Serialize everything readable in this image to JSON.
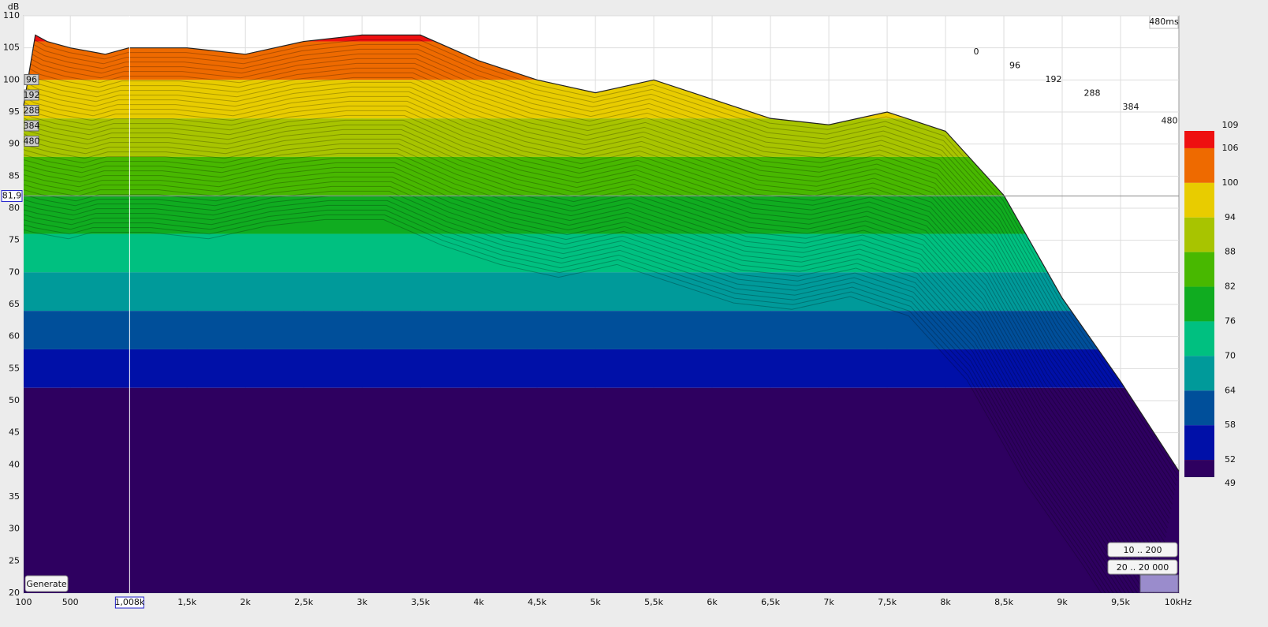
{
  "chart_data": {
    "type": "waterfall",
    "y_label": "dB",
    "x_unit_label": "10kHz",
    "xlim": [
      100,
      10000
    ],
    "ylim": [
      20,
      110
    ],
    "xticks": [
      100,
      500,
      {
        "value": 1500,
        "label": "1,5k"
      },
      {
        "value": 2000,
        "label": "2k"
      },
      {
        "value": 2500,
        "label": "2,5k"
      },
      {
        "value": 3000,
        "label": "3k"
      },
      {
        "value": 3500,
        "label": "3,5k"
      },
      {
        "value": 4000,
        "label": "4k"
      },
      {
        "value": 4500,
        "label": "4,5k"
      },
      {
        "value": 5000,
        "label": "5k"
      },
      {
        "value": 5500,
        "label": "5,5k"
      },
      {
        "value": 6000,
        "label": "6k"
      },
      {
        "value": 6500,
        "label": "6,5k"
      },
      {
        "value": 7000,
        "label": "7k"
      },
      {
        "value": 7500,
        "label": "7,5k"
      },
      {
        "value": 8000,
        "label": "8k"
      },
      {
        "value": 8500,
        "label": "8,5k"
      },
      {
        "value": 9000,
        "label": "9k"
      },
      {
        "value": 9500,
        "label": "9,5k"
      }
    ],
    "yticks": [
      20,
      25,
      30,
      35,
      40,
      45,
      50,
      55,
      60,
      65,
      70,
      75,
      80,
      85,
      90,
      95,
      100,
      105,
      110
    ],
    "grid": true,
    "series": [
      {
        "name": "surface outline",
        "x": [
          100,
          200,
          300,
          500,
          800,
          1000,
          1500,
          2000,
          2500,
          3000,
          3500,
          4000,
          4500,
          5000,
          5500,
          6000,
          6500,
          7000,
          7500,
          8000,
          8500,
          9000,
          9500,
          10000
        ],
        "values": [
          96,
          107,
          106,
          105,
          104,
          105,
          105,
          104,
          106,
          107,
          107,
          103,
          100,
          98,
          100,
          97,
          94,
          93,
          95,
          92,
          82,
          66,
          53,
          39
        ]
      }
    ],
    "time_window": "480ms",
    "time_ticks": [
      0,
      96,
      192,
      288,
      384,
      480
    ],
    "colorbar": {
      "ticks": [
        109,
        106,
        100,
        94,
        88,
        82,
        76,
        70,
        64,
        58,
        52,
        49
      ],
      "colors": [
        "#ee1010",
        "#ee6a00",
        "#e8cc00",
        "#a8c400",
        "#48b800",
        "#10ac20",
        "#00c080",
        "#009a9a",
        "#004f9a",
        "#0010a8",
        "#2e0060"
      ]
    },
    "cursor": {
      "x": {
        "value": 1008,
        "label": "1,008k"
      },
      "y": {
        "value": 81.9,
        "label": "81,9"
      }
    },
    "buttons": [
      "Generate",
      "10 .. 200",
      "20 .. 20 000"
    ]
  }
}
